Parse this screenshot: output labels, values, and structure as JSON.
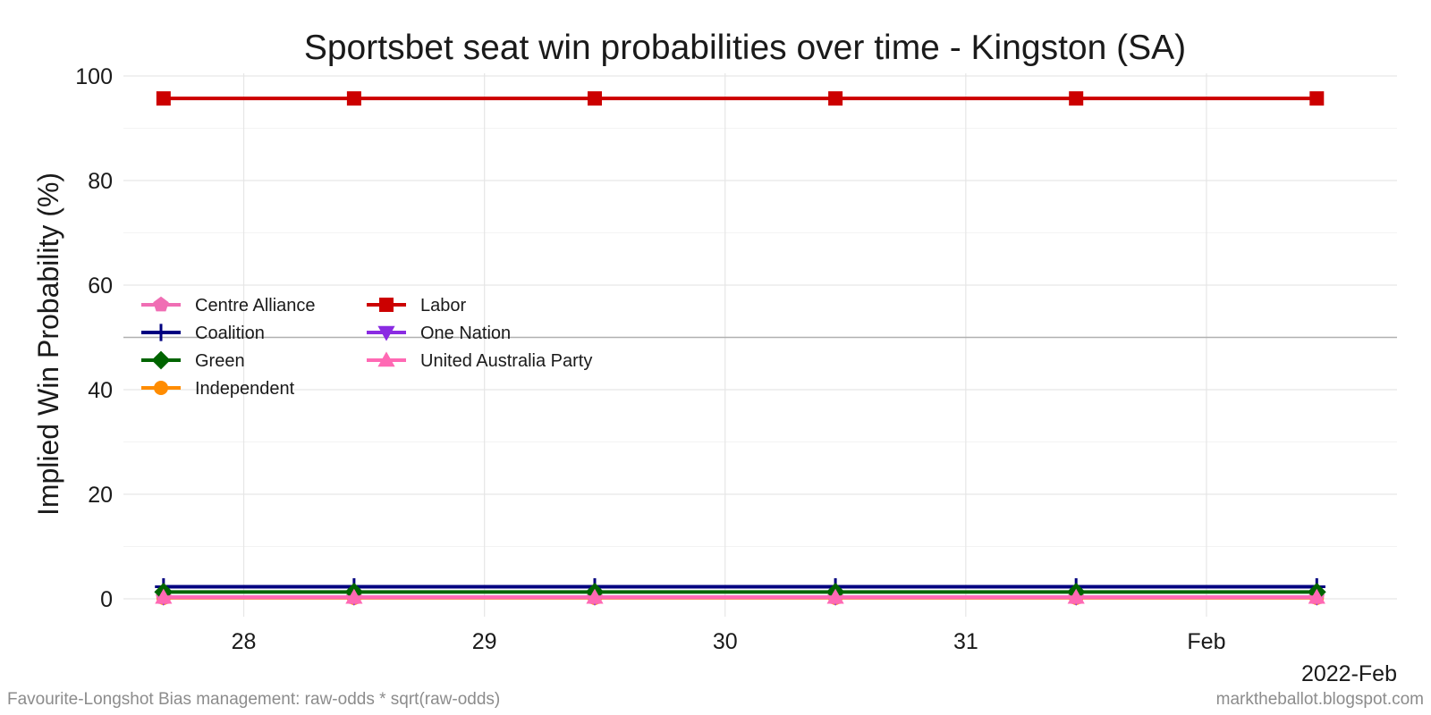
{
  "chart_data": {
    "type": "line",
    "title": "Sportsbet seat win probabilities over time - Kingston (SA)",
    "ylabel": "Implied Win Probability (%)",
    "xlabel": "",
    "x_axis_year_label": "2022-Feb",
    "ylim": [
      0,
      100
    ],
    "y_ticks": [
      0,
      20,
      40,
      60,
      80,
      100
    ],
    "x_tick_labels": [
      "28",
      "29",
      "30",
      "31",
      "Feb"
    ],
    "x_tick_dates": [
      "2022-01-28",
      "2022-01-29",
      "2022-01-30",
      "2022-01-31",
      "2022-02-01"
    ],
    "x_range": [
      "2022-01-27 12:00",
      "2022-02-01 19:00"
    ],
    "x": [
      "2022-01-27 16:00",
      "2022-01-28 11:00",
      "2022-01-29 11:00",
      "2022-01-30 11:00",
      "2022-01-31 11:00",
      "2022-02-01 11:00"
    ],
    "reference_line_y": 50,
    "grid": true,
    "legend_position": "left-middle",
    "series": [
      {
        "name": "Centre Alliance",
        "color": "#f06eb4",
        "marker": "pentagon",
        "values": [
          0.3,
          0.3,
          0.3,
          0.3,
          0.3,
          0.3
        ]
      },
      {
        "name": "Coalition",
        "color": "#000080",
        "marker": "plus",
        "values": [
          2.3,
          2.3,
          2.3,
          2.3,
          2.3,
          2.3
        ]
      },
      {
        "name": "Green",
        "color": "#006400",
        "marker": "diamond",
        "values": [
          1.3,
          1.3,
          1.3,
          1.3,
          1.3,
          1.3
        ]
      },
      {
        "name": "Independent",
        "color": "#ff8c00",
        "marker": "circle",
        "values": [
          0.2,
          0.2,
          0.2,
          0.2,
          0.2,
          0.2
        ]
      },
      {
        "name": "Labor",
        "color": "#cc0000",
        "marker": "square",
        "values": [
          95.7,
          95.7,
          95.7,
          95.7,
          95.7,
          95.7
        ]
      },
      {
        "name": "One Nation",
        "color": "#8a2be2",
        "marker": "triangle-down",
        "values": [
          0.3,
          0.3,
          0.3,
          0.3,
          0.3,
          0.3
        ]
      },
      {
        "name": "United Australia Party",
        "color": "#ff69b4",
        "marker": "triangle-up",
        "values": [
          0.3,
          0.3,
          0.3,
          0.3,
          0.3,
          0.3
        ]
      }
    ]
  },
  "footer": {
    "left": "Favourite-Longshot Bias management: raw-odds * sqrt(raw-odds)",
    "right": "marktheballot.blogspot.com"
  }
}
